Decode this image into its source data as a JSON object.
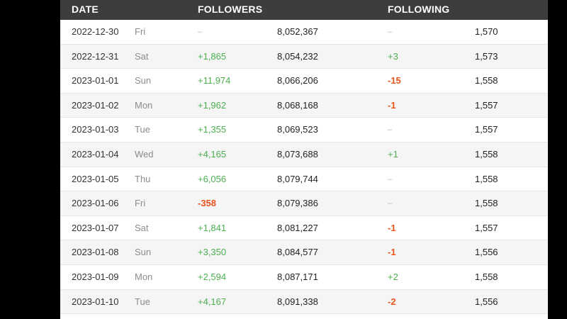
{
  "header": {
    "date": "DATE",
    "followers": "FOLLOWERS",
    "following": "FOLLOWING"
  },
  "colors": {
    "positive": "#4caf50",
    "negative": "#e8541b",
    "neutral": "#b8b8b8",
    "header_bg": "#3d3d3d"
  },
  "rows": [
    {
      "date": "2022-12-30",
      "day": "Fri",
      "followers_change": "–",
      "followers_total": "8,052,367",
      "following_change": "–",
      "following_total": "1,570"
    },
    {
      "date": "2022-12-31",
      "day": "Sat",
      "followers_change": "+1,865",
      "followers_total": "8,054,232",
      "following_change": "+3",
      "following_total": "1,573"
    },
    {
      "date": "2023-01-01",
      "day": "Sun",
      "followers_change": "+11,974",
      "followers_total": "8,066,206",
      "following_change": "-15",
      "following_total": "1,558"
    },
    {
      "date": "2023-01-02",
      "day": "Mon",
      "followers_change": "+1,962",
      "followers_total": "8,068,168",
      "following_change": "-1",
      "following_total": "1,557"
    },
    {
      "date": "2023-01-03",
      "day": "Tue",
      "followers_change": "+1,355",
      "followers_total": "8,069,523",
      "following_change": "–",
      "following_total": "1,557"
    },
    {
      "date": "2023-01-04",
      "day": "Wed",
      "followers_change": "+4,165",
      "followers_total": "8,073,688",
      "following_change": "+1",
      "following_total": "1,558"
    },
    {
      "date": "2023-01-05",
      "day": "Thu",
      "followers_change": "+6,056",
      "followers_total": "8,079,744",
      "following_change": "–",
      "following_total": "1,558"
    },
    {
      "date": "2023-01-06",
      "day": "Fri",
      "followers_change": "-358",
      "followers_total": "8,079,386",
      "following_change": "–",
      "following_total": "1,558"
    },
    {
      "date": "2023-01-07",
      "day": "Sat",
      "followers_change": "+1,841",
      "followers_total": "8,081,227",
      "following_change": "-1",
      "following_total": "1,557"
    },
    {
      "date": "2023-01-08",
      "day": "Sun",
      "followers_change": "+3,350",
      "followers_total": "8,084,577",
      "following_change": "-1",
      "following_total": "1,556"
    },
    {
      "date": "2023-01-09",
      "day": "Mon",
      "followers_change": "+2,594",
      "followers_total": "8,087,171",
      "following_change": "+2",
      "following_total": "1,558"
    },
    {
      "date": "2023-01-10",
      "day": "Tue",
      "followers_change": "+4,167",
      "followers_total": "8,091,338",
      "following_change": "-2",
      "following_total": "1,556"
    }
  ]
}
